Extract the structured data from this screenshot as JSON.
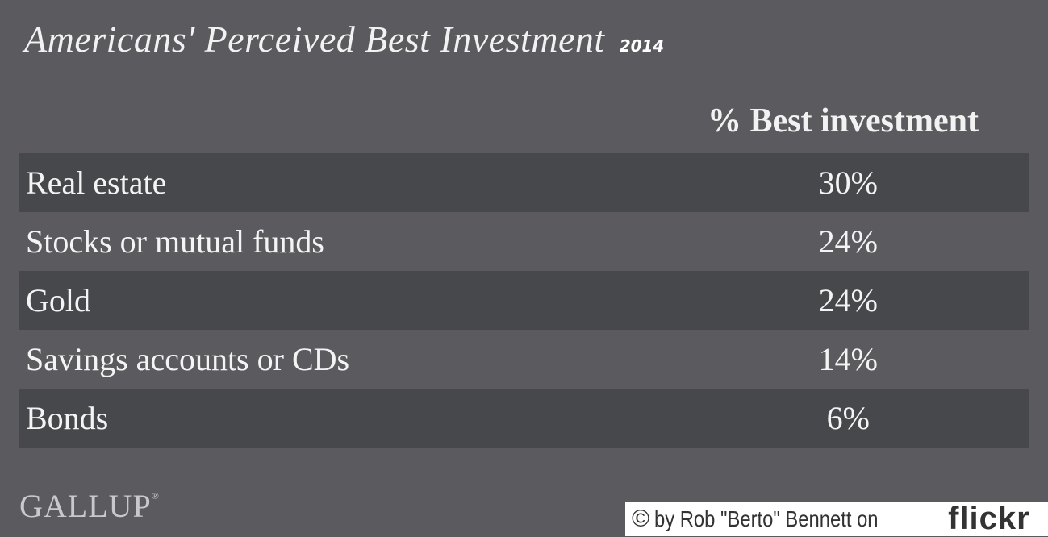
{
  "title": "Americans' Perceived Best Investment",
  "year": "2014",
  "chart_data": {
    "type": "table",
    "column_header": "% Best investment",
    "rows": [
      {
        "label": "Real estate",
        "value": "30%"
      },
      {
        "label": "Stocks or mutual funds",
        "value": "24%"
      },
      {
        "label": "Gold",
        "value": "24%"
      },
      {
        "label": "Savings accounts or CDs",
        "value": "14%"
      },
      {
        "label": "Bonds",
        "value": "6%"
      }
    ],
    "values": [
      30,
      24,
      24,
      14,
      6
    ]
  },
  "footer": {
    "logo": "GALLUP",
    "logo_mark": "®",
    "credit_copy": "©",
    "credit_text": "by Rob \"Berto\" Bennett on",
    "credit_brand": "flickr"
  },
  "colors": {
    "background": "#5b5b5f",
    "row_dark": "#47484b",
    "text": "#f4f4f4"
  }
}
